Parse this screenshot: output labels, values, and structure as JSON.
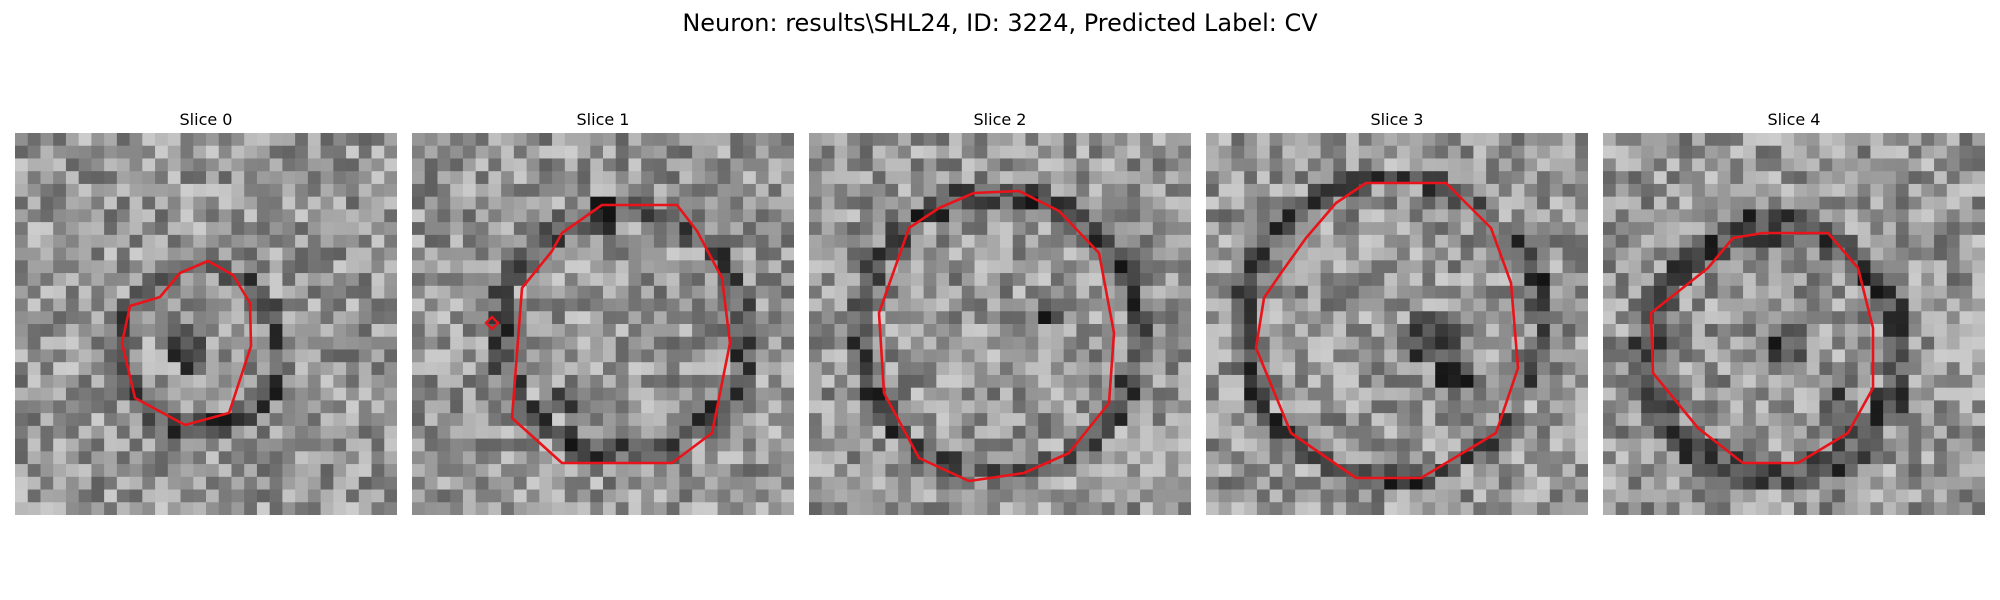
{
  "figure": {
    "title": "Neuron: results\\SHL24, ID: 3224, Predicted Label: CV"
  },
  "colors": {
    "contour": "#e8141a",
    "background": "#ffffff"
  },
  "panels": [
    {
      "title": "Slice 0"
    },
    {
      "title": "Slice 1"
    },
    {
      "title": "Slice 2"
    },
    {
      "title": "Slice 3"
    },
    {
      "title": "Slice 4"
    }
  ]
}
